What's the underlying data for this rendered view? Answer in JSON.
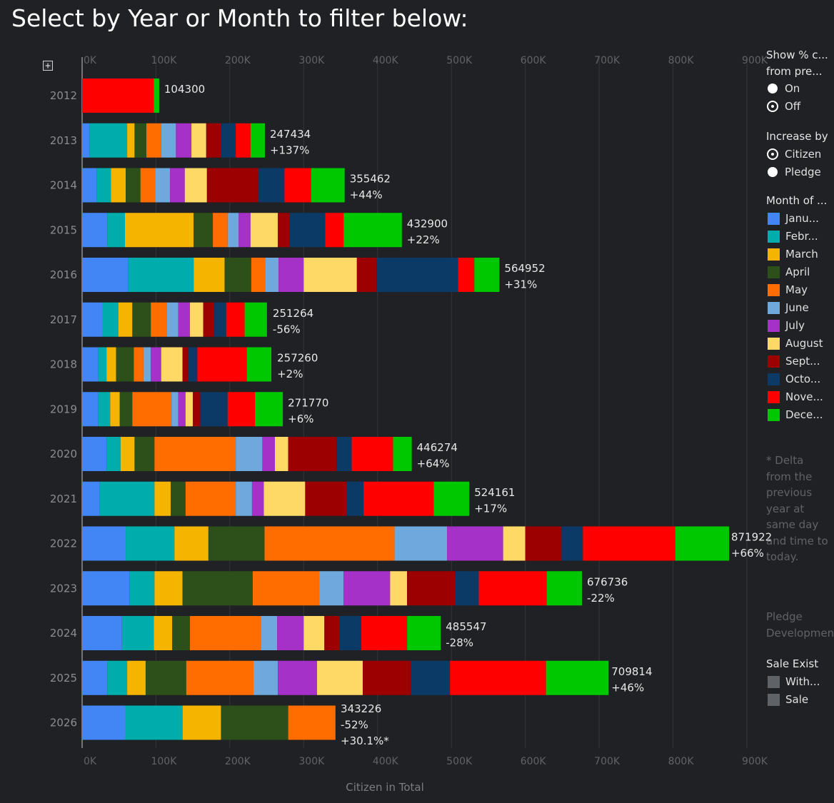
{
  "page": {
    "title": "Select by Year or Month to filter below:"
  },
  "chart_data": {
    "type": "bar",
    "orientation": "horizontal",
    "stacked": true,
    "xlabel": "Citizen in Total",
    "xlim": [
      0,
      900000
    ],
    "x_ticks": [
      "0K",
      "100K",
      "200K",
      "300K",
      "400K",
      "500K",
      "600K",
      "700K",
      "800K",
      "900K"
    ],
    "grid": true,
    "categories": [
      "2012",
      "2013",
      "2014",
      "2015",
      "2016",
      "2017",
      "2018",
      "2019",
      "2020",
      "2021",
      "2022",
      "2023",
      "2024",
      "2025",
      "2026"
    ],
    "series": [
      {
        "name": "Janu...",
        "color": "#4285f4",
        "values": [
          0,
          10000,
          20000,
          34000,
          62000,
          28000,
          22000,
          22000,
          33000,
          24000,
          59000,
          64000,
          54000,
          34000,
          58000
        ]
      },
      {
        "name": "Febr...",
        "color": "#00adad",
        "values": [
          0,
          51000,
          19000,
          24000,
          89000,
          21000,
          11000,
          16000,
          19000,
          74000,
          66000,
          34000,
          43000,
          27000,
          78000
        ]
      },
      {
        "name": "March",
        "color": "#f4b400",
        "values": [
          0,
          10000,
          20000,
          93000,
          42000,
          19000,
          13000,
          13000,
          19000,
          22000,
          46000,
          38000,
          25000,
          25000,
          52000
        ]
      },
      {
        "name": "April",
        "color": "#2d4f1a",
        "values": [
          0,
          16000,
          20000,
          26000,
          36000,
          25000,
          24000,
          17000,
          27000,
          20000,
          76000,
          95000,
          24000,
          55000,
          91000
        ]
      },
      {
        "name": "May",
        "color": "#ff6d00",
        "values": [
          0,
          20000,
          20000,
          20000,
          19000,
          22000,
          13000,
          53000,
          110000,
          68000,
          176000,
          90000,
          96000,
          91000,
          64000
        ]
      },
      {
        "name": "June",
        "color": "#6fa8dc",
        "values": [
          0,
          20000,
          20000,
          15000,
          18000,
          15000,
          10000,
          9000,
          36000,
          22000,
          71000,
          33000,
          22000,
          33000,
          0
        ]
      },
      {
        "name": "July",
        "color": "#a531c8",
        "values": [
          0,
          21000,
          20000,
          16000,
          34000,
          16000,
          14000,
          10000,
          17000,
          16000,
          76000,
          63000,
          36000,
          53000,
          0
        ]
      },
      {
        "name": "August",
        "color": "#ffd966",
        "values": [
          0,
          20000,
          30000,
          37000,
          72000,
          18000,
          29000,
          10000,
          18000,
          56000,
          30000,
          23000,
          28000,
          62000,
          0
        ]
      },
      {
        "name": "Sept...",
        "color": "#9c0000",
        "values": [
          0,
          20000,
          70000,
          16000,
          27000,
          15000,
          8000,
          10000,
          66000,
          56000,
          49000,
          65000,
          20000,
          65000,
          0
        ]
      },
      {
        "name": "Octo...",
        "color": "#0b3a66",
        "values": [
          0,
          20000,
          35000,
          48000,
          110000,
          16000,
          12000,
          37000,
          20000,
          23000,
          29000,
          32000,
          30000,
          53000,
          0
        ]
      },
      {
        "name": "Nove...",
        "color": "#ff0000",
        "values": [
          97000,
          20000,
          36000,
          25000,
          22000,
          25000,
          67000,
          37000,
          56000,
          95000,
          125000,
          92000,
          62000,
          130000,
          0
        ]
      },
      {
        "name": "Dece...",
        "color": "#00c800",
        "values": [
          7300,
          19434,
          45462,
          78900,
          33952,
          30264,
          33260,
          37770,
          25274,
          48161,
          72922,
          47736,
          45547,
          84814,
          0
        ]
      }
    ],
    "totals": [
      104300,
      247434,
      355462,
      432900,
      564952,
      251264,
      257260,
      271770,
      446274,
      524161,
      871922,
      676736,
      485547,
      709814,
      343226
    ],
    "label_lines": [
      [
        "104300"
      ],
      [
        "247434",
        "+137%"
      ],
      [
        "355462",
        "+44%"
      ],
      [
        "432900",
        "+22%"
      ],
      [
        "564952",
        "+31%"
      ],
      [
        "251264",
        "-56%"
      ],
      [
        "257260",
        "+2%"
      ],
      [
        "271770",
        "+6%"
      ],
      [
        "446274",
        "+64%"
      ],
      [
        "524161",
        "+17%"
      ],
      [
        "871922",
        "+66%"
      ],
      [
        "676736",
        "-22%"
      ],
      [
        "485547",
        "-28%"
      ],
      [
        "709814",
        "+46%"
      ],
      [
        "343226",
        "-52%",
        "+30.1%*"
      ]
    ]
  },
  "sidebar": {
    "show_pct": {
      "title_line1": "Show % c...",
      "title_line2": "from pre...",
      "options": [
        {
          "label": "On",
          "selected": false
        },
        {
          "label": "Off",
          "selected": true
        }
      ]
    },
    "increase_by": {
      "title": "Increase by",
      "options": [
        {
          "label": "Citizen",
          "selected": true
        },
        {
          "label": "Pledge",
          "selected": false
        }
      ]
    },
    "month_legend": {
      "title": "Month of ...",
      "items": [
        {
          "label": "Janu...",
          "color": "#4285f4"
        },
        {
          "label": "Febr...",
          "color": "#00adad"
        },
        {
          "label": "March",
          "color": "#f4b400"
        },
        {
          "label": "April",
          "color": "#2d4f1a"
        },
        {
          "label": "May",
          "color": "#ff6d00"
        },
        {
          "label": "June",
          "color": "#6fa8dc"
        },
        {
          "label": "July",
          "color": "#a531c8"
        },
        {
          "label": "August",
          "color": "#ffd966"
        },
        {
          "label": "Sept...",
          "color": "#9c0000"
        },
        {
          "label": "Octo...",
          "color": "#0b3a66"
        },
        {
          "label": "Nove...",
          "color": "#ff0000"
        },
        {
          "label": "Dece...",
          "color": "#00c800"
        }
      ]
    },
    "delta_note": [
      "* Delta",
      "from the",
      "previous",
      "year at",
      "same day",
      "and time to",
      "today."
    ],
    "pledge_note": [
      "Pledge",
      "Developmen"
    ],
    "sale_exist": {
      "title": "Sale Exist",
      "items": [
        {
          "label": "With...",
          "color": "#5f6368"
        },
        {
          "label": "Sale",
          "color": "#5f6368"
        }
      ]
    }
  }
}
